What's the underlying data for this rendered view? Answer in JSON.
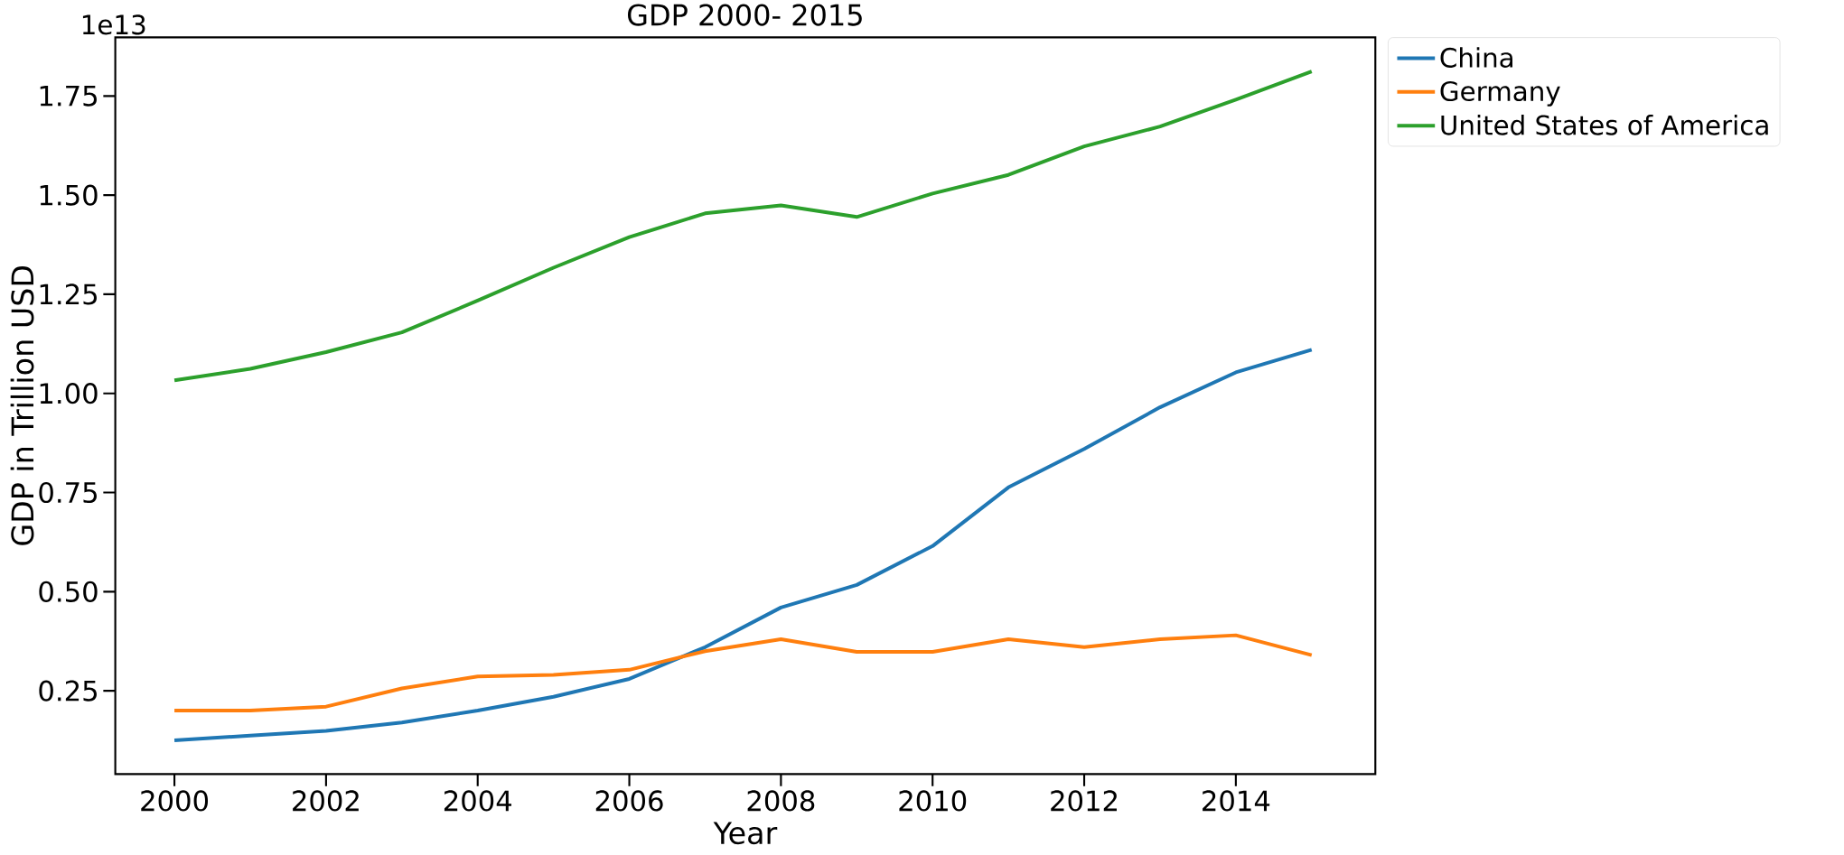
{
  "chart_data": {
    "type": "line",
    "title": "GDP 2000- 2015",
    "xlabel": "Year",
    "ylabel": "GDP in Trillion USD",
    "annotations": [
      "1e13"
    ],
    "x": [
      2000,
      2001,
      2002,
      2003,
      2004,
      2005,
      2006,
      2007,
      2008,
      2009,
      2010,
      2011,
      2012,
      2013,
      2014,
      2015
    ],
    "series": [
      {
        "name": "China",
        "color": "#1f77b4",
        "values": [
          0.125,
          0.137,
          0.149,
          0.17,
          0.2,
          0.235,
          0.28,
          0.36,
          0.46,
          0.517,
          0.615,
          0.763,
          0.86,
          0.965,
          1.053,
          1.11
        ]
      },
      {
        "name": "Germany",
        "color": "#ff7f0e",
        "values": [
          0.2,
          0.2,
          0.21,
          0.256,
          0.286,
          0.29,
          0.303,
          0.35,
          0.38,
          0.348,
          0.348,
          0.38,
          0.36,
          0.38,
          0.39,
          0.34
        ]
      },
      {
        "name": "United States of America",
        "color": "#2ca02c",
        "values": [
          1.033,
          1.062,
          1.104,
          1.154,
          1.234,
          1.317,
          1.394,
          1.454,
          1.474,
          1.445,
          1.504,
          1.551,
          1.623,
          1.673,
          1.741,
          1.812
        ]
      }
    ],
    "xlim": [
      1999.22,
      2015.84
    ],
    "xticks": [
      2000,
      2002,
      2004,
      2006,
      2008,
      2010,
      2012,
      2014
    ],
    "ylim": [
      0.04,
      1.898
    ],
    "yticks": [
      {
        "value": 0.25,
        "label": "0.25"
      },
      {
        "value": 0.5,
        "label": "0.50"
      },
      {
        "value": 0.75,
        "label": "0.75"
      },
      {
        "value": 1.0,
        "label": "1.00"
      },
      {
        "value": 1.25,
        "label": "1.25"
      },
      {
        "value": 1.5,
        "label": "1.50"
      },
      {
        "value": 1.75,
        "label": "1.75"
      }
    ],
    "grid": false,
    "legend": "top right",
    "marker": "none",
    "line_style": "solid"
  }
}
